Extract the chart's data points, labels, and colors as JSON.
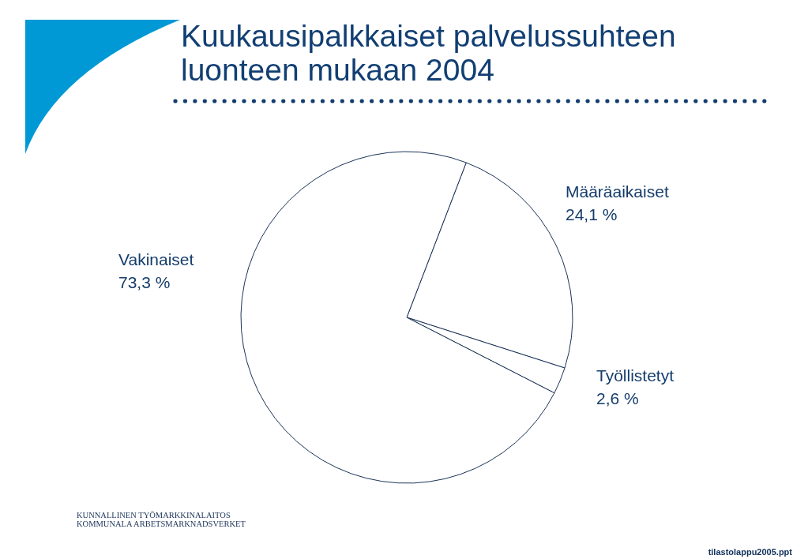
{
  "chart_data": {
    "type": "pie",
    "title": "Kuukausipalkkaiset palvelussuhteen luonteen mukaan 2004",
    "categories": [
      "Määräaikaiset",
      "Työllistetyt",
      "Vakinaiset"
    ],
    "values": [
      24.1,
      2.6,
      73.3
    ],
    "colors": [
      "#ffffff",
      "#ffffff",
      "#ffffff"
    ],
    "value_labels": [
      "24,1 %",
      "2,6 %",
      "73,3 %"
    ],
    "annotations": [
      "KUNNALLINEN TYÖMARKKINALAITOS",
      "KOMMUNALA ARBETSMARKNADSVERKET",
      "tilastolappu2005.ppt"
    ]
  }
}
